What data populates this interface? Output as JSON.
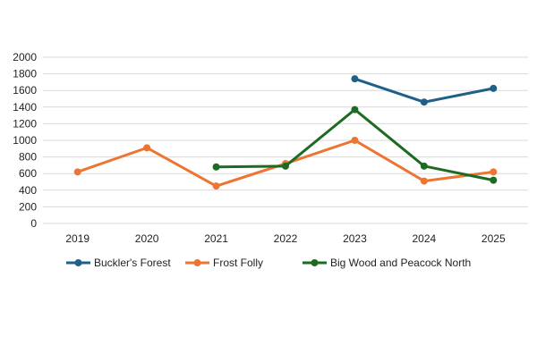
{
  "chart_data": {
    "type": "line",
    "title": "",
    "xlabel": "",
    "ylabel": "",
    "categories": [
      "2019",
      "2020",
      "2021",
      "2022",
      "2023",
      "2024",
      "2025"
    ],
    "ylim": [
      0,
      2000
    ],
    "yticks": [
      0,
      200,
      400,
      600,
      800,
      1000,
      1200,
      1400,
      1600,
      1800,
      2000
    ],
    "grid": true,
    "legend_position": "bottom",
    "series": [
      {
        "name": "Buckler's Forest",
        "color": "#1f6088",
        "values": [
          null,
          null,
          null,
          null,
          1740,
          1460,
          1625
        ]
      },
      {
        "name": "Frost Folly",
        "color": "#ed7531",
        "values": [
          620,
          910,
          450,
          720,
          1000,
          510,
          620
        ]
      },
      {
        "name": "Big Wood and Peacock North",
        "color": "#1d6b23",
        "values": [
          null,
          null,
          680,
          690,
          1370,
          690,
          520
        ]
      }
    ]
  }
}
